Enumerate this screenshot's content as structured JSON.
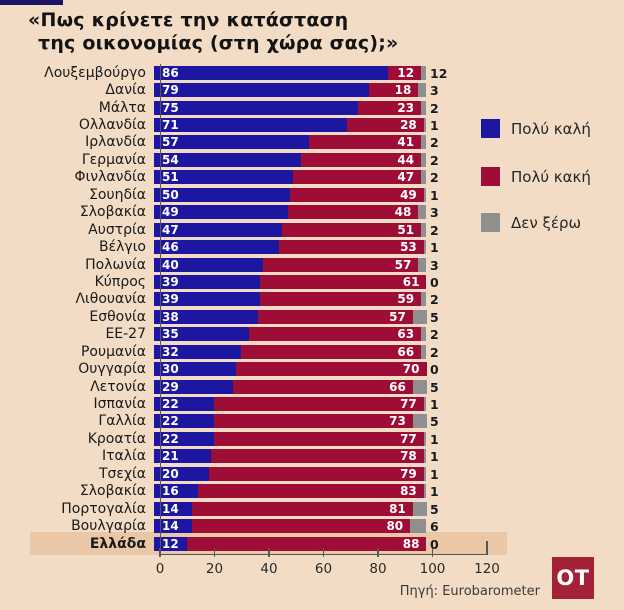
{
  "title": {
    "line1": "«Πως κρίνετε την κατάσταση",
    "line2": "της οικονομίας (στη χώρα σας);»"
  },
  "legend": {
    "items": [
      {
        "label": "Πολύ καλή",
        "color": "#1c16a0"
      },
      {
        "label": "Πολύ κακή",
        "color": "#9d0d36"
      },
      {
        "label": "Δεν ξέρω",
        "color": "#8f8f8f"
      }
    ]
  },
  "chart_data": {
    "type": "bar",
    "orientation": "horizontal",
    "stacked": true,
    "title": "«Πως κρίνετε την κατάσταση της οικονομίας (στη χώρα σας);»",
    "xlim": [
      0,
      120
    ],
    "x_ticks": [
      0,
      20,
      40,
      60,
      80,
      100,
      120
    ],
    "highlighted_category": "Ελλάδα",
    "categories": [
      "Λουξεμβούργο",
      "Δανία",
      "Μάλτα",
      "Ολλανδία",
      "Ιρλανδία",
      "Γερμανία",
      "Φινλανδία",
      "Σουηδία",
      "Σλοβακία",
      "Αυστρία",
      "Βέλγιο",
      "Πολωνία",
      "Κύπρος",
      "Λιθουανία",
      "Εσθονία",
      "ΕΕ-27",
      "Ρουμανία",
      "Ουγγαρία",
      "Λετονία",
      "Ισπανία",
      "Γαλλία",
      "Κροατία",
      "Ιταλία",
      "Τσεχία",
      "Σλοβακία",
      "Πορτογαλία",
      "Βουλγαρία",
      "Ελλάδα"
    ],
    "series": [
      {
        "name": "Πολύ καλή",
        "color": "#1c16a0",
        "values": [
          86,
          79,
          75,
          71,
          57,
          54,
          51,
          50,
          49,
          47,
          46,
          40,
          39,
          39,
          38,
          35,
          32,
          30,
          29,
          22,
          22,
          22,
          21,
          20,
          16,
          14,
          14,
          12
        ]
      },
      {
        "name": "Πολύ κακή",
        "color": "#9d0d36",
        "values": [
          12,
          18,
          23,
          28,
          41,
          44,
          47,
          49,
          48,
          51,
          53,
          57,
          61,
          59,
          57,
          63,
          66,
          70,
          66,
          77,
          73,
          77,
          78,
          79,
          83,
          81,
          80,
          88
        ]
      },
      {
        "name": "Δεν ξέρω",
        "color": "#8f8f8f",
        "values": [
          12,
          3,
          2,
          1,
          2,
          2,
          2,
          1,
          3,
          2,
          1,
          3,
          0,
          2,
          5,
          2,
          2,
          0,
          5,
          1,
          5,
          1,
          1,
          1,
          1,
          5,
          6,
          0
        ]
      }
    ]
  },
  "source": "Πηγή: Eurobarometer",
  "logo_text": "OT",
  "colors": {
    "background": "#f2dcc5",
    "highlight_band": "#eac7a6",
    "accent_line": "#1b1464",
    "axis": "#565656",
    "logo_bg": "#a32238"
  }
}
